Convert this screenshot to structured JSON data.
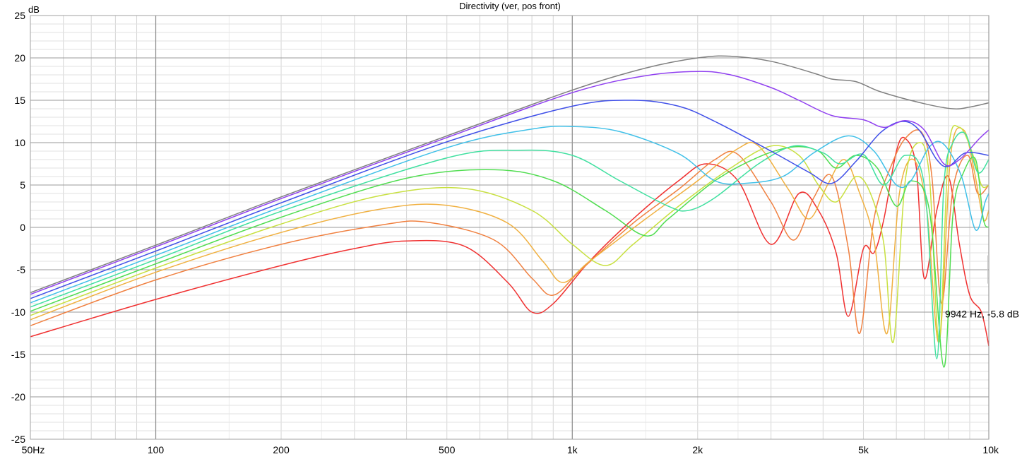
{
  "chart_data": {
    "type": "line",
    "title": "Directivity (ver, pos front)",
    "ylabel": "dB",
    "xscale": "log",
    "xlim": [
      50,
      10000
    ],
    "ylim": [
      -25,
      25
    ],
    "grid": true,
    "legend": "none",
    "x_tick_labels": [
      {
        "value": 50,
        "label": "50Hz"
      },
      {
        "value": 100,
        "label": "100"
      },
      {
        "value": 200,
        "label": "200"
      },
      {
        "value": 500,
        "label": "500"
      },
      {
        "value": 1000,
        "label": "1k"
      },
      {
        "value": 2000,
        "label": "2k"
      },
      {
        "value": 5000,
        "label": "5k"
      },
      {
        "value": 10000,
        "label": "10k"
      }
    ],
    "y_tick_labels": [
      {
        "value": 25,
        "label": "25"
      },
      {
        "value": 20,
        "label": "20"
      },
      {
        "value": 15,
        "label": "15"
      },
      {
        "value": 10,
        "label": "10"
      },
      {
        "value": 5,
        "label": "5"
      },
      {
        "value": 0,
        "label": "0"
      },
      {
        "value": -5,
        "label": "-5"
      },
      {
        "value": -10,
        "label": "-10"
      },
      {
        "value": -15,
        "label": "-15"
      },
      {
        "value": -20,
        "label": "-20"
      },
      {
        "value": -25,
        "label": "-25"
      }
    ],
    "cursor_readout": {
      "x": 9942,
      "y": -5.8,
      "text": "9942 Hz, -5.8 dB"
    },
    "series": [
      {
        "color": "#808080",
        "points": [
          [
            50,
            -7.7
          ],
          [
            100,
            -2.1
          ],
          [
            200,
            3.6
          ],
          [
            500,
            10.8
          ],
          [
            1000,
            16.2
          ],
          [
            1500,
            18.8
          ],
          [
            2000,
            20.0
          ],
          [
            2400,
            20.2
          ],
          [
            3000,
            19.6
          ],
          [
            3800,
            18.2
          ],
          [
            4200,
            17.5
          ],
          [
            4800,
            17.2
          ],
          [
            5500,
            16.0
          ],
          [
            7000,
            14.6
          ],
          [
            8200,
            14.0
          ],
          [
            9000,
            14.2
          ],
          [
            10000,
            14.7
          ]
        ]
      },
      {
        "color": "#9040f0",
        "points": [
          [
            50,
            -7.9
          ],
          [
            100,
            -2.3
          ],
          [
            200,
            3.4
          ],
          [
            500,
            10.6
          ],
          [
            1000,
            15.9
          ],
          [
            1500,
            17.9
          ],
          [
            2000,
            18.4
          ],
          [
            2400,
            18.0
          ],
          [
            3000,
            16.5
          ],
          [
            3500,
            15.0
          ],
          [
            4200,
            13.2
          ],
          [
            5000,
            12.7
          ],
          [
            5600,
            11.8
          ],
          [
            6300,
            12.6
          ],
          [
            7000,
            11.5
          ],
          [
            7800,
            7.5
          ],
          [
            8500,
            8.0
          ],
          [
            9500,
            10.5
          ],
          [
            10000,
            11.5
          ]
        ]
      },
      {
        "color": "#4050e8",
        "points": [
          [
            50,
            -8.4
          ],
          [
            100,
            -2.8
          ],
          [
            200,
            2.9
          ],
          [
            500,
            10.1
          ],
          [
            1000,
            14.3
          ],
          [
            1400,
            15.0
          ],
          [
            1800,
            14.3
          ],
          [
            2200,
            12.5
          ],
          [
            3000,
            9.0
          ],
          [
            3700,
            6.5
          ],
          [
            4200,
            5.2
          ],
          [
            4800,
            7.8
          ],
          [
            5500,
            11.2
          ],
          [
            6200,
            12.5
          ],
          [
            6800,
            11.5
          ],
          [
            7500,
            8.0
          ],
          [
            8000,
            7.2
          ],
          [
            8800,
            8.8
          ],
          [
            10000,
            8.5
          ]
        ]
      },
      {
        "color": "#40c0e8",
        "points": [
          [
            50,
            -8.9
          ],
          [
            100,
            -3.3
          ],
          [
            200,
            2.4
          ],
          [
            500,
            9.4
          ],
          [
            800,
            11.6
          ],
          [
            1000,
            11.9
          ],
          [
            1300,
            11.3
          ],
          [
            1800,
            8.7
          ],
          [
            2200,
            5.5
          ],
          [
            2600,
            5.2
          ],
          [
            3200,
            6.0
          ],
          [
            3800,
            8.8
          ],
          [
            4600,
            10.8
          ],
          [
            5300,
            9.0
          ],
          [
            6000,
            5.0
          ],
          [
            6500,
            5.5
          ],
          [
            7200,
            9.5
          ],
          [
            7800,
            9.8
          ],
          [
            8600,
            6.0
          ],
          [
            9300,
            -0.3
          ],
          [
            9800,
            3.0
          ],
          [
            10000,
            4.0
          ]
        ]
      },
      {
        "color": "#40e0a0",
        "points": [
          [
            50,
            -9.4
          ],
          [
            100,
            -3.8
          ],
          [
            200,
            1.9
          ],
          [
            500,
            8.2
          ],
          [
            750,
            9.1
          ],
          [
            1000,
            8.5
          ],
          [
            1300,
            5.5
          ],
          [
            1700,
            2.5
          ],
          [
            1900,
            2.0
          ],
          [
            2200,
            3.5
          ],
          [
            2800,
            7.5
          ],
          [
            3400,
            9.6
          ],
          [
            4000,
            8.8
          ],
          [
            4400,
            7.5
          ],
          [
            5000,
            8.6
          ],
          [
            5600,
            5.0
          ],
          [
            6300,
            8.5
          ],
          [
            7000,
            5.0
          ],
          [
            7500,
            -15.5
          ],
          [
            7800,
            5.0
          ],
          [
            8200,
            10.0
          ],
          [
            8800,
            11.0
          ],
          [
            9400,
            6.5
          ],
          [
            10000,
            8.0
          ]
        ]
      },
      {
        "color": "#50dd50",
        "points": [
          [
            50,
            -9.9
          ],
          [
            100,
            -4.3
          ],
          [
            200,
            1.2
          ],
          [
            400,
            5.8
          ],
          [
            650,
            6.8
          ],
          [
            900,
            5.5
          ],
          [
            1200,
            2.0
          ],
          [
            1500,
            -1.0
          ],
          [
            1700,
            1.0
          ],
          [
            2200,
            5.5
          ],
          [
            2800,
            8.3
          ],
          [
            3400,
            9.5
          ],
          [
            3900,
            9.0
          ],
          [
            4300,
            7.0
          ],
          [
            4800,
            8.5
          ],
          [
            5400,
            7.0
          ],
          [
            6000,
            2.5
          ],
          [
            6500,
            5.5
          ],
          [
            7200,
            2.0
          ],
          [
            7800,
            -16.5
          ],
          [
            8200,
            1.5
          ],
          [
            8700,
            6.5
          ],
          [
            9300,
            8.0
          ],
          [
            9700,
            1.0
          ],
          [
            10000,
            0.0
          ]
        ]
      },
      {
        "color": "#c8e040",
        "points": [
          [
            50,
            -10.4
          ],
          [
            100,
            -4.8
          ],
          [
            200,
            0.4
          ],
          [
            350,
            3.8
          ],
          [
            550,
            4.6
          ],
          [
            800,
            2.0
          ],
          [
            1000,
            -2.0
          ],
          [
            1200,
            -4.5
          ],
          [
            1400,
            -2.0
          ],
          [
            1800,
            2.5
          ],
          [
            2400,
            7.0
          ],
          [
            3000,
            9.6
          ],
          [
            3500,
            8.5
          ],
          [
            3900,
            5.0
          ],
          [
            4300,
            3.0
          ],
          [
            4800,
            6.0
          ],
          [
            5200,
            4.0
          ],
          [
            5600,
            -2.0
          ],
          [
            5900,
            -13.5
          ],
          [
            6300,
            5.5
          ],
          [
            6800,
            10.0
          ],
          [
            7200,
            6.0
          ],
          [
            7600,
            -13.5
          ],
          [
            8000,
            9.0
          ],
          [
            8500,
            11.8
          ],
          [
            9100,
            9.0
          ],
          [
            9600,
            5.0
          ],
          [
            10000,
            5.0
          ]
        ]
      },
      {
        "color": "#f0b040",
        "points": [
          [
            50,
            -10.9
          ],
          [
            100,
            -5.3
          ],
          [
            200,
            -0.6
          ],
          [
            350,
            2.2
          ],
          [
            500,
            2.6
          ],
          [
            700,
            0.5
          ],
          [
            850,
            -4.0
          ],
          [
            950,
            -6.5
          ],
          [
            1100,
            -4.0
          ],
          [
            1500,
            1.0
          ],
          [
            2000,
            5.5
          ],
          [
            2500,
            9.3
          ],
          [
            2800,
            9.6
          ],
          [
            3300,
            4.5
          ],
          [
            3700,
            1.0
          ],
          [
            4100,
            5.0
          ],
          [
            4500,
            8.0
          ],
          [
            4900,
            4.0
          ],
          [
            5300,
            -1.5
          ],
          [
            5700,
            -12.5
          ],
          [
            6100,
            4.0
          ],
          [
            6600,
            8.0
          ],
          [
            7100,
            2.0
          ],
          [
            7600,
            -13.5
          ],
          [
            8100,
            8.5
          ],
          [
            8700,
            11.5
          ],
          [
            9200,
            7.0
          ],
          [
            9700,
            1.0
          ],
          [
            10000,
            2.0
          ]
        ]
      },
      {
        "color": "#f08040",
        "points": [
          [
            50,
            -11.6
          ],
          [
            100,
            -6.2
          ],
          [
            200,
            -2.0
          ],
          [
            350,
            0.3
          ],
          [
            450,
            0.6
          ],
          [
            650,
            -1.5
          ],
          [
            800,
            -6.0
          ],
          [
            900,
            -8.0
          ],
          [
            1050,
            -5.0
          ],
          [
            1400,
            0.5
          ],
          [
            1800,
            4.5
          ],
          [
            2200,
            8.0
          ],
          [
            2500,
            8.6
          ],
          [
            3000,
            3.0
          ],
          [
            3400,
            -1.5
          ],
          [
            3800,
            3.5
          ],
          [
            4200,
            6.0
          ],
          [
            4600,
            -2.5
          ],
          [
            4900,
            -12.5
          ],
          [
            5300,
            1.0
          ],
          [
            5800,
            7.0
          ],
          [
            6300,
            10.5
          ],
          [
            6900,
            11.2
          ],
          [
            7300,
            6.0
          ],
          [
            7700,
            -9.0
          ],
          [
            8200,
            4.5
          ],
          [
            8900,
            8.5
          ],
          [
            9400,
            4.0
          ],
          [
            10000,
            5.0
          ]
        ]
      },
      {
        "color": "#f03030",
        "points": [
          [
            50,
            -12.9
          ],
          [
            100,
            -8.5
          ],
          [
            200,
            -4.5
          ],
          [
            300,
            -2.5
          ],
          [
            400,
            -1.6
          ],
          [
            550,
            -2.2
          ],
          [
            700,
            -6.5
          ],
          [
            800,
            -10.0
          ],
          [
            900,
            -9.0
          ],
          [
            1100,
            -4.0
          ],
          [
            1400,
            1.0
          ],
          [
            1800,
            5.5
          ],
          [
            2100,
            7.5
          ],
          [
            2500,
            5.5
          ],
          [
            3000,
            -2.0
          ],
          [
            3500,
            4.0
          ],
          [
            3900,
            2.0
          ],
          [
            4300,
            -3.0
          ],
          [
            4600,
            -10.5
          ],
          [
            5000,
            -2.5
          ],
          [
            5300,
            -3.0
          ],
          [
            5600,
            1.0
          ],
          [
            6000,
            9.0
          ],
          [
            6300,
            10.5
          ],
          [
            6700,
            7.0
          ],
          [
            7000,
            -6.0
          ],
          [
            7500,
            2.0
          ],
          [
            8000,
            6.0
          ],
          [
            8500,
            -2.0
          ],
          [
            9000,
            -8.0
          ],
          [
            9600,
            -10.0
          ],
          [
            10000,
            -14.0
          ]
        ]
      }
    ]
  }
}
